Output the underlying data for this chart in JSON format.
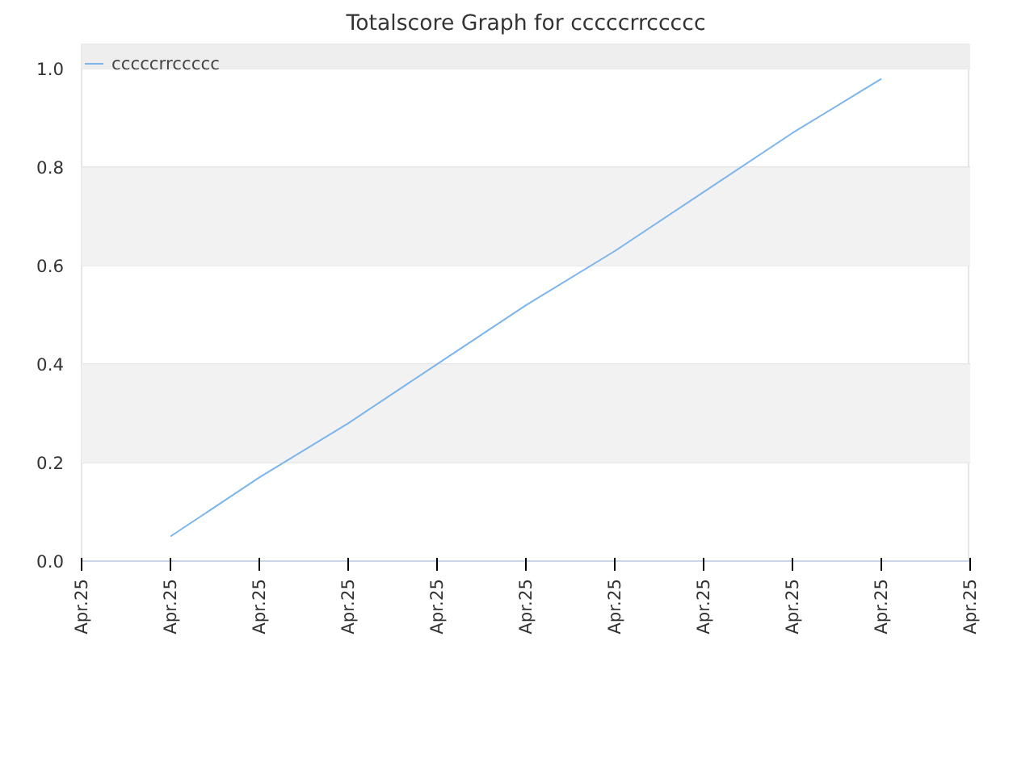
{
  "chart_data": {
    "type": "line",
    "title": "Totalscore Graph for cccccrrccccc",
    "categories": [
      "Apr.25",
      "Apr.25",
      "Apr.25",
      "Apr.25",
      "Apr.25",
      "Apr.25",
      "Apr.25",
      "Apr.25",
      "Apr.25",
      "Apr.25",
      "Apr.25"
    ],
    "series": [
      {
        "name": "cccccrrccccc",
        "color": "#7cb5ec",
        "values": [
          null,
          0.05,
          0.17,
          0.28,
          0.4,
          0.52,
          0.63,
          0.75,
          0.87,
          0.98,
          null
        ]
      }
    ],
    "ylim": [
      0,
      1.05
    ],
    "yticks": [
      {
        "value": 0,
        "label": "0.0"
      },
      {
        "value": 0.2,
        "label": "0.2"
      },
      {
        "value": 0.4,
        "label": "0.4"
      },
      {
        "value": 0.6,
        "label": "0.6"
      },
      {
        "value": 0.8,
        "label": "0.8"
      },
      {
        "value": 1,
        "label": "1.0"
      }
    ],
    "bands": [
      {
        "axis": "y",
        "from": 0.2,
        "to": 0.4,
        "color": "#f2f2f2"
      },
      {
        "axis": "y",
        "from": 0.6,
        "to": 0.8,
        "color": "#f2f2f2"
      },
      {
        "axis": "y",
        "from": 1.0,
        "to": 1.05,
        "color": "#eeeeee"
      }
    ],
    "grid": "y",
    "legend": "top left",
    "marker": "none",
    "line_style": "solid"
  }
}
